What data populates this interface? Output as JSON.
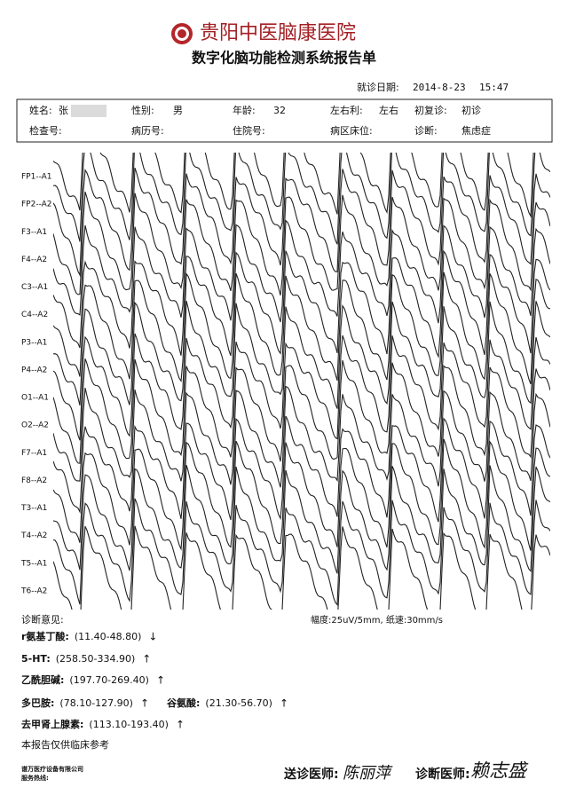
{
  "header": {
    "title": "贵阳中医脑康医院",
    "subtitle": "数字化脑功能检测系统报告单",
    "date_label": "就诊日期:",
    "date": "2014-8-23",
    "time": "15:47"
  },
  "patient": {
    "rows": [
      [
        {
          "label": "姓名:",
          "value": "张"
        },
        {
          "label": "性别:",
          "value": "男"
        },
        {
          "label": "年龄:",
          "value": "32"
        },
        {
          "label": "左右利:",
          "value": "左右"
        },
        {
          "label": "初复诊:",
          "value": "初诊"
        }
      ],
      [
        {
          "label": "检查号:"
        },
        {
          "label": "病历号:"
        },
        {
          "label": "住院号:"
        },
        {
          "label": "病区床位:"
        },
        {
          "label": "诊断:",
          "value": "焦虑症"
        }
      ]
    ]
  },
  "channels": [
    "FP1--A1",
    "FP2--A2",
    "F3--A1",
    "F4--A2",
    "C3--A1",
    "C4--A2",
    "P3--A1",
    "P4--A2",
    "O1--A1",
    "O2--A2",
    "F7--A1",
    "F8--A2",
    "T3--A1",
    "T4--A2",
    "T5--A1",
    "T6--A2"
  ],
  "findings": {
    "label": "诊断意见:",
    "scale": "幅度:25uV/5mm, 纸速:30mm/s",
    "lines": [
      [
        {
          "name": "r氨基丁酸:",
          "range": "(11.40-48.80)",
          "flag": "↓"
        }
      ],
      [
        {
          "name": "5-HT:",
          "range": "(258.50-334.90)",
          "flag": "↑"
        }
      ],
      [
        {
          "name": "乙酰胆碱:",
          "range": "(197.70-269.40)",
          "flag": "↑"
        }
      ],
      [
        {
          "name": "多巴胺:",
          "range": "(78.10-127.90)",
          "flag": "↑"
        },
        {
          "name": "谷氨酸:",
          "range": "(21.30-56.70)",
          "flag": "↑"
        }
      ],
      [
        {
          "name": "去甲肾上腺素:",
          "range": "(113.10-193.40)",
          "flag": "↑"
        }
      ]
    ],
    "note": "本报告仅供临床参考"
  },
  "footer": {
    "company": "谱万医疗设备有限公司",
    "hotline": "服务热线:",
    "referring_label": "送诊医师:",
    "referring": "陈丽萍",
    "diagnosing_label": "诊断医师:",
    "diagnosing": "赖志盛"
  }
}
